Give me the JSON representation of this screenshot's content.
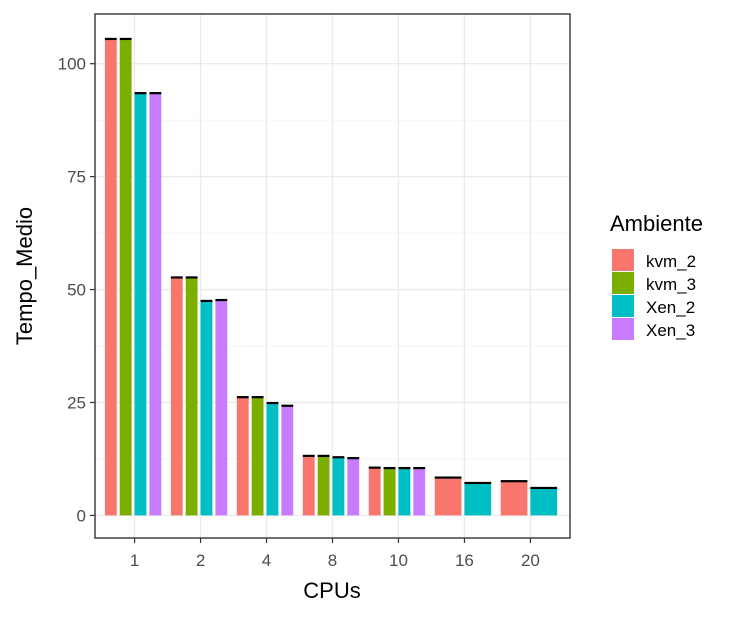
{
  "chart_data": {
    "type": "bar",
    "categories": [
      "1",
      "2",
      "4",
      "8",
      "10",
      "16",
      "20"
    ],
    "series": [
      {
        "name": "kvm_2",
        "color": "#F8766D",
        "values": [
          105.5,
          52.7,
          26.2,
          13.2,
          10.6,
          8.4,
          7.6
        ]
      },
      {
        "name": "kvm_3",
        "color": "#7CAE00",
        "values": [
          105.5,
          52.7,
          26.2,
          13.2,
          10.5,
          null,
          null
        ]
      },
      {
        "name": "Xen_2",
        "color": "#00BFC4",
        "values": [
          93.5,
          47.5,
          24.9,
          12.9,
          10.5,
          7.2,
          6.1
        ]
      },
      {
        "name": "Xen_3",
        "color": "#C77CFF",
        "values": [
          93.5,
          47.7,
          24.3,
          12.7,
          10.5,
          null,
          null
        ]
      }
    ],
    "xlabel": "CPUs",
    "ylabel": "Tempo_Medio",
    "ylim": [
      -5,
      111
    ],
    "yticks": [
      0,
      25,
      50,
      75,
      100
    ],
    "grid": true,
    "legend_title": "Ambiente",
    "legend_position": "right"
  }
}
